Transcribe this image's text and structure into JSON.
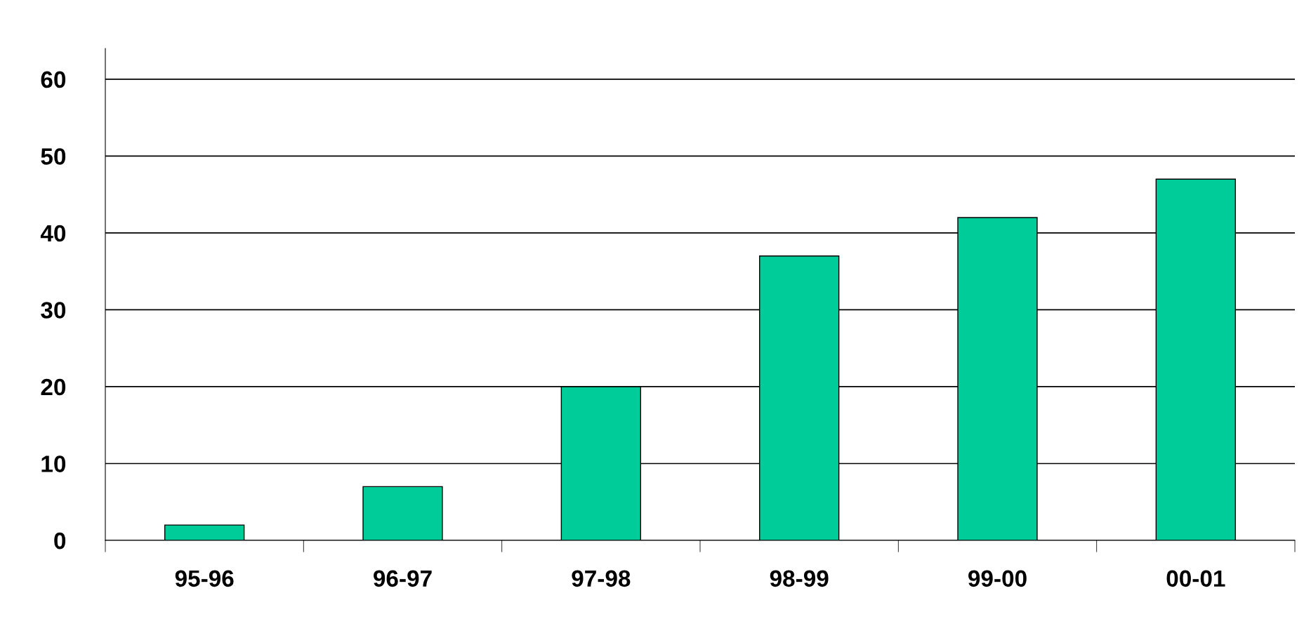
{
  "chart_data": {
    "type": "bar",
    "categories": [
      "95-96",
      "96-97",
      "97-98",
      "98-99",
      "99-00",
      "00-01"
    ],
    "values": [
      2,
      7,
      20,
      37,
      42,
      47
    ],
    "color": "#00cc99",
    "ylim": [
      0,
      64
    ],
    "yticks": [
      0,
      10,
      20,
      30,
      40,
      50,
      60
    ],
    "grid": "y"
  }
}
